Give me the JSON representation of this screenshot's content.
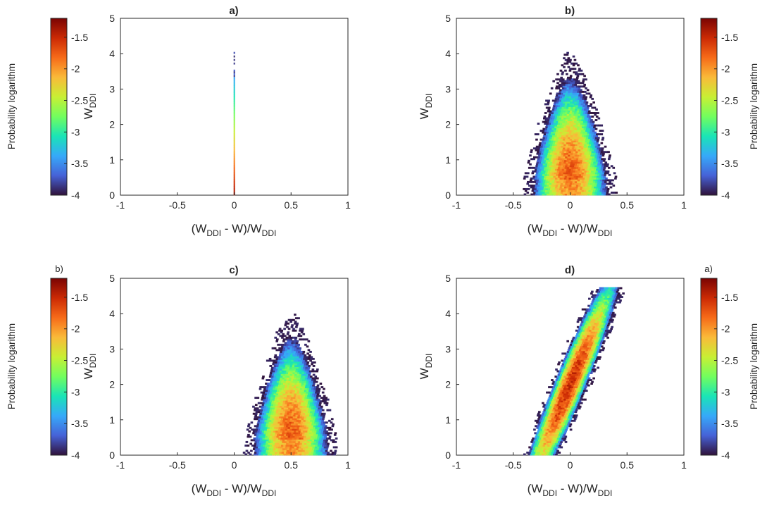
{
  "colorbar": {
    "label": "Probability logarithm",
    "ticks": [
      "-1.5",
      "-2",
      "-2.5",
      "-3",
      "-3.5",
      "-4"
    ],
    "tick_values": [
      -1.5,
      -2,
      -2.5,
      -3,
      -3.5,
      -4
    ],
    "range": [
      -4,
      -1.2
    ],
    "colormap": "turbo",
    "colors": [
      "#30123b",
      "#4662d7",
      "#36a9f9",
      "#1ae4b6",
      "#72fe5e",
      "#c8ef34",
      "#faba39",
      "#f66b19",
      "#cb2a04",
      "#7a0403"
    ],
    "corner_labels": [
      "",
      "",
      "b)",
      "a)"
    ]
  },
  "axes": {
    "x_ticks": [
      "-1",
      "-0.5",
      "0",
      "0.5",
      "1"
    ],
    "x_tick_values": [
      -1,
      -0.5,
      0,
      0.5,
      1
    ],
    "y_ticks": [
      "0",
      "1",
      "2",
      "3",
      "4",
      "5"
    ],
    "y_tick_values": [
      0,
      1,
      2,
      3,
      4,
      5
    ],
    "xlabel": {
      "pre": "(W",
      "sub1": "DDI",
      "mid": " - W)/W",
      "sub2": "DDI"
    },
    "ylabel": {
      "main": "W",
      "sub": "DDI"
    }
  },
  "chart_data": [
    {
      "type": "heatmap",
      "title": "a)",
      "xlim": [
        -1,
        1
      ],
      "ylim": [
        0,
        5
      ],
      "clim": [
        -4,
        -1.2
      ],
      "distribution": {
        "x_center": 0.0,
        "x_spread": 0.004,
        "y_max": 4.1,
        "tilt": 0,
        "shape": "vertical-line"
      }
    },
    {
      "type": "heatmap",
      "title": "b)",
      "xlim": [
        -1,
        1
      ],
      "ylim": [
        0,
        5
      ],
      "clim": [
        -4,
        -1.2
      ],
      "distribution": {
        "x_center": 0.0,
        "x_spread": 0.11,
        "y_max": 4.1,
        "tilt": 0,
        "shape": "cloud"
      }
    },
    {
      "type": "heatmap",
      "title": "c)",
      "xlim": [
        -1,
        1
      ],
      "ylim": [
        0,
        5
      ],
      "clim": [
        -4,
        -1.2
      ],
      "distribution": {
        "x_center": 0.5,
        "x_spread": 0.11,
        "y_max": 4.1,
        "tilt": 0,
        "shape": "cloud"
      }
    },
    {
      "type": "heatmap",
      "title": "d)",
      "xlim": [
        -1,
        1
      ],
      "ylim": [
        0,
        5
      ],
      "clim": [
        -4,
        -1.2
      ],
      "distribution": {
        "x_center": -0.25,
        "x_spread": 0.045,
        "y_max": 4.7,
        "tilt": 0.125,
        "shape": "diagonal-band"
      }
    }
  ]
}
